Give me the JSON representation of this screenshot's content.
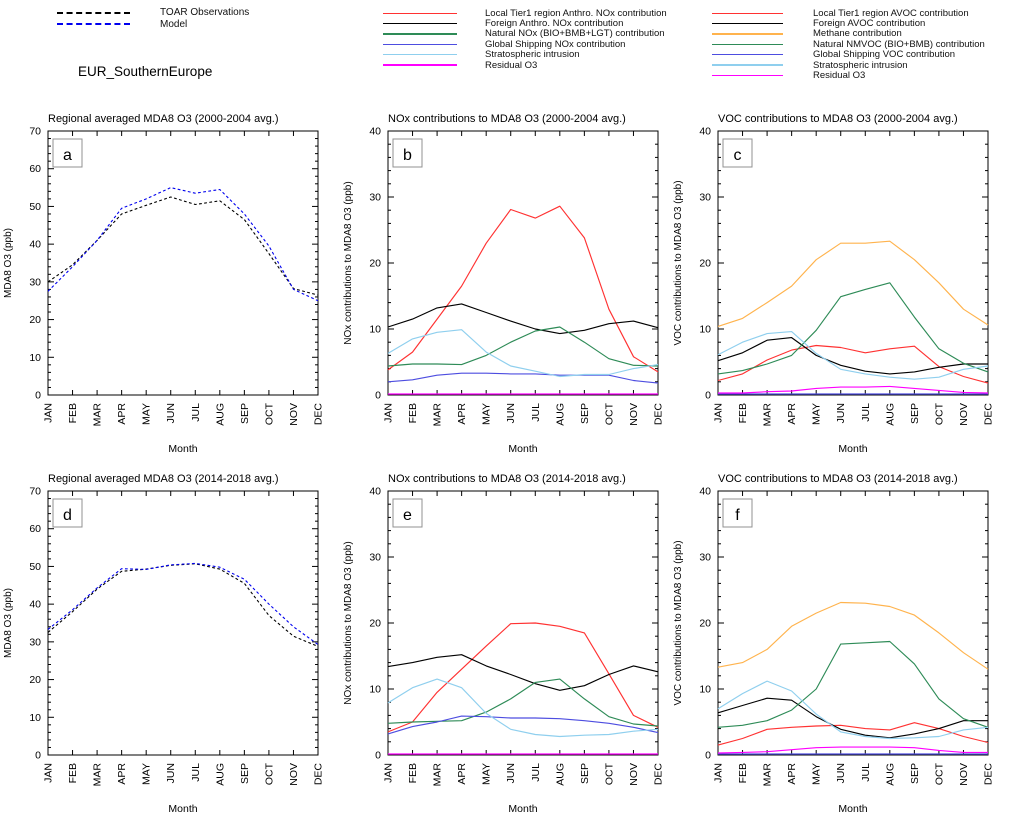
{
  "region_label": "EUR_SouthernEurope",
  "months": [
    "JAN",
    "FEB",
    "MAR",
    "APR",
    "MAY",
    "JUN",
    "JUL",
    "AUG",
    "SEP",
    "OCT",
    "NOV",
    "DEC"
  ],
  "xlabel": "Month",
  "colors": {
    "observations": "#000000",
    "model": "#0000ee",
    "local_anthro": "#ff3232",
    "foreign_anthro": "#000000",
    "natural": "#2e8b57",
    "shipping": "#4d4de0",
    "stratospheric": "#8fcfee",
    "residual": "#ff00ff",
    "methane": "#ffb34d"
  },
  "legends": [
    {
      "id": "obs-model",
      "entries": [
        {
          "label": "TOAR Observations",
          "color": "#000000",
          "dash": true
        },
        {
          "label": "Model",
          "color": "#0000ee",
          "dash": true
        }
      ]
    },
    {
      "id": "nox",
      "entries": [
        {
          "label": "Local Tier1 region Anthro. NOx contribution",
          "color": "#ff3232",
          "dash": false
        },
        {
          "label": "Foreign Anthro. NOx contribution",
          "color": "#000000",
          "dash": false
        },
        {
          "label": "Natural NOx (BIO+BMB+LGT) contribution",
          "color": "#2e8b57",
          "dash": false
        },
        {
          "label": "Global Shipping NOx contribution",
          "color": "#4d4de0",
          "dash": false
        },
        {
          "label": "Stratospheric intrusion",
          "color": "#8fcfee",
          "dash": false
        },
        {
          "label": "Residual O3",
          "color": "#ff00ff",
          "dash": false
        }
      ]
    },
    {
      "id": "voc",
      "entries": [
        {
          "label": "Local Tier1 region AVOC contribution",
          "color": "#ff3232",
          "dash": false
        },
        {
          "label": "Foreign AVOC contribution",
          "color": "#000000",
          "dash": false
        },
        {
          "label": "Methane contribution",
          "color": "#ffb34d",
          "dash": false
        },
        {
          "label": "Natural NMVOC (BIO+BMB) contribution",
          "color": "#2e8b57",
          "dash": false
        },
        {
          "label": "Global Shipping VOC contribution",
          "color": "#4d4de0",
          "dash": false
        },
        {
          "label": "Stratospheric intrusion",
          "color": "#8fcfee",
          "dash": false
        },
        {
          "label": "Residual O3",
          "color": "#ff00ff",
          "dash": false
        }
      ]
    }
  ],
  "chart_data": [
    {
      "type": "line",
      "letter": "a",
      "title": "Regional averaged MDA8 O3 (2000-2004 avg.)",
      "ylabel": "MDA8 O3 (ppb)",
      "xlabel": "Month",
      "ylim": [
        0,
        70
      ],
      "ytick_step": 10,
      "yminor_step": 2,
      "grid": false,
      "series": [
        {
          "name": "TOAR Observations",
          "color": "#000000",
          "dash": true,
          "values": [
            30,
            34.5,
            41,
            48,
            50.3,
            52.5,
            50.5,
            51.5,
            46.5,
            37.5,
            28.2,
            26.5
          ]
        },
        {
          "name": "Model",
          "color": "#0000ee",
          "dash": true,
          "values": [
            27.5,
            34,
            41,
            49.5,
            52,
            55,
            53.5,
            54.5,
            48,
            39.5,
            28,
            25
          ]
        }
      ]
    },
    {
      "type": "line",
      "letter": "b",
      "title": "NOx contributions to MDA8 O3 (2000-2004 avg.)",
      "ylabel": "NOx contributions to MDA8 O3 (ppb)",
      "xlabel": "Month",
      "ylim": [
        0,
        40
      ],
      "ytick_step": 10,
      "yminor_step": 2,
      "grid": false,
      "series": [
        {
          "name": "Local Tier1 region Anthro. NOx contribution",
          "color": "#ff3232",
          "dash": false,
          "values": [
            3.8,
            6.5,
            11.5,
            16.5,
            23,
            28.1,
            26.8,
            28.6,
            23.8,
            13,
            5.8,
            3.5
          ]
        },
        {
          "name": "Foreign Anthro. NOx contribution",
          "color": "#000000",
          "dash": false,
          "values": [
            10.3,
            11.5,
            13.2,
            13.8,
            12.5,
            11.2,
            10,
            9.3,
            9.8,
            10.8,
            11.2,
            10.2
          ]
        },
        {
          "name": "Natural NOx (BIO+BMB+LGT) contribution",
          "color": "#2e8b57",
          "dash": false,
          "values": [
            4.4,
            4.7,
            4.7,
            4.6,
            6,
            8,
            9.7,
            10.3,
            8,
            5.5,
            4.5,
            4.4
          ]
        },
        {
          "name": "Global Shipping NOx contribution",
          "color": "#4d4de0",
          "dash": false,
          "values": [
            2,
            2.3,
            3,
            3.3,
            3.3,
            3.2,
            3.2,
            3,
            3,
            3,
            2.2,
            1.8
          ]
        },
        {
          "name": "Stratospheric intrusion",
          "color": "#8fcfee",
          "dash": false,
          "values": [
            6.3,
            8.5,
            9.5,
            9.9,
            6.5,
            4.4,
            3.6,
            2.8,
            3.1,
            3.1,
            4,
            4.6
          ]
        },
        {
          "name": "Residual O3",
          "color": "#ff00ff",
          "dash": false,
          "values": [
            0.15,
            0.15,
            0.15,
            0.15,
            0.15,
            0.15,
            0.15,
            0.15,
            0.15,
            0.15,
            0.15,
            0.15
          ]
        }
      ]
    },
    {
      "type": "line",
      "letter": "c",
      "title": "VOC contributions to MDA8 O3 (2000-2004 avg.)",
      "ylabel": "VOC contributions to MDA8 O3 (ppb)",
      "xlabel": "Month",
      "ylim": [
        0,
        40
      ],
      "ytick_step": 10,
      "yminor_step": 2,
      "grid": false,
      "series": [
        {
          "name": "Local Tier1 region AVOC contribution",
          "color": "#ff3232",
          "dash": false,
          "values": [
            2.2,
            3.2,
            5.3,
            6.8,
            7.5,
            7.2,
            6.4,
            7,
            7.4,
            4.3,
            2.8,
            1.8
          ]
        },
        {
          "name": "Foreign AVOC contribution",
          "color": "#000000",
          "dash": false,
          "values": [
            5.2,
            6.4,
            8.3,
            8.7,
            6,
            4.5,
            3.6,
            3.2,
            3.5,
            4.2,
            4.7,
            4.7
          ]
        },
        {
          "name": "Methane contribution",
          "color": "#ffb34d",
          "dash": false,
          "values": [
            10.4,
            11.6,
            14,
            16.5,
            20.5,
            23,
            23,
            23.3,
            20.5,
            17,
            13,
            10.6
          ]
        },
        {
          "name": "Natural NMVOC (BIO+BMB) contribution",
          "color": "#2e8b57",
          "dash": false,
          "values": [
            3.2,
            3.7,
            4.7,
            6,
            9.8,
            14.9,
            16,
            17,
            11.8,
            7,
            4.8,
            3.5
          ]
        },
        {
          "name": "Global Shipping VOC contribution",
          "color": "#4d4de0",
          "dash": false,
          "values": [
            0.15,
            0.15,
            0.15,
            0.15,
            0.15,
            0.15,
            0.15,
            0.15,
            0.15,
            0.15,
            0.15,
            0.15
          ]
        },
        {
          "name": "Stratospheric intrusion",
          "color": "#8fcfee",
          "dash": false,
          "values": [
            6.1,
            8,
            9.3,
            9.6,
            6.3,
            3.9,
            3.2,
            2.7,
            2.4,
            2.7,
            3.9,
            4.4
          ]
        },
        {
          "name": "Residual O3",
          "color": "#ff00ff",
          "dash": false,
          "values": [
            0.3,
            0.3,
            0.5,
            0.6,
            1,
            1.2,
            1.2,
            1.3,
            1,
            0.7,
            0.4,
            0.3
          ]
        }
      ]
    },
    {
      "type": "line",
      "letter": "d",
      "title": "Regional averaged MDA8 O3 (2014-2018 avg.)",
      "ylabel": "MDA8 O3 (ppb)",
      "xlabel": "Month",
      "ylim": [
        0,
        70
      ],
      "ytick_step": 10,
      "yminor_step": 2,
      "grid": false,
      "series": [
        {
          "name": "TOAR Observations",
          "color": "#000000",
          "dash": true,
          "values": [
            32.5,
            38,
            44,
            48.7,
            49.3,
            50.3,
            50.7,
            49.3,
            45.5,
            37,
            31.5,
            28.8
          ]
        },
        {
          "name": "Model",
          "color": "#0000ee",
          "dash": true,
          "values": [
            33.3,
            38.5,
            44.3,
            49.4,
            49.2,
            50.4,
            50.8,
            49.8,
            46.6,
            40,
            34,
            29.3
          ]
        }
      ]
    },
    {
      "type": "line",
      "letter": "e",
      "title": "NOx contributions to MDA8 O3 (2014-2018 avg.)",
      "ylabel": "NOx contributions to MDA8 O3 (ppb)",
      "xlabel": "Month",
      "ylim": [
        0,
        40
      ],
      "ytick_step": 10,
      "yminor_step": 2,
      "grid": false,
      "series": [
        {
          "name": "Local Tier1 region Anthro. NOx contribution",
          "color": "#ff3232",
          "dash": false,
          "values": [
            3.5,
            5,
            9.5,
            13,
            16.5,
            19.9,
            20,
            19.5,
            18.5,
            12.3,
            6,
            4.2
          ]
        },
        {
          "name": "Foreign Anthro. NOx contribution",
          "color": "#000000",
          "dash": false,
          "values": [
            13.4,
            14,
            14.8,
            15.2,
            13.5,
            12.2,
            10.8,
            9.8,
            10.5,
            12.2,
            13.5,
            12.6
          ]
        },
        {
          "name": "Natural NOx (BIO+BMB+LGT) contribution",
          "color": "#2e8b57",
          "dash": false,
          "values": [
            4.8,
            5,
            5.1,
            5.2,
            6.5,
            8.5,
            11,
            11.5,
            8.5,
            5.8,
            4.7,
            4.4
          ]
        },
        {
          "name": "Global Shipping NOx contribution",
          "color": "#4d4de0",
          "dash": false,
          "values": [
            3.2,
            4.3,
            5,
            5.9,
            5.8,
            5.6,
            5.6,
            5.5,
            5.2,
            4.8,
            4.2,
            3.4
          ]
        },
        {
          "name": "Stratospheric intrusion",
          "color": "#8fcfee",
          "dash": false,
          "values": [
            7.9,
            10.2,
            11.5,
            10.2,
            6.3,
            3.9,
            3.1,
            2.8,
            3,
            3.1,
            3.6,
            3.9
          ]
        },
        {
          "name": "Residual O3",
          "color": "#ff00ff",
          "dash": false,
          "values": [
            0.15,
            0.15,
            0.15,
            0.15,
            0.15,
            0.15,
            0.15,
            0.15,
            0.15,
            0.15,
            0.15,
            0.15
          ]
        }
      ]
    },
    {
      "type": "line",
      "letter": "f",
      "title": "VOC contributions to MDA8 O3 (2014-2018 avg.)",
      "ylabel": "VOC contributions to MDA8 O3 (ppb)",
      "xlabel": "Month",
      "ylim": [
        0,
        40
      ],
      "ytick_step": 10,
      "yminor_step": 2,
      "grid": false,
      "series": [
        {
          "name": "Local Tier1 region AVOC contribution",
          "color": "#ff3232",
          "dash": false,
          "values": [
            1.5,
            2.5,
            3.9,
            4.2,
            4.4,
            4.5,
            4,
            3.8,
            4.9,
            4,
            2.8,
            1.9
          ]
        },
        {
          "name": "Foreign AVOC contribution",
          "color": "#000000",
          "dash": false,
          "values": [
            6.4,
            7.5,
            8.6,
            8.3,
            5.8,
            3.9,
            3,
            2.6,
            3.2,
            4,
            5.2,
            5.2
          ]
        },
        {
          "name": "Methane contribution",
          "color": "#ffb34d",
          "dash": false,
          "values": [
            13.3,
            14,
            16,
            19.5,
            21.5,
            23.1,
            23,
            22.5,
            21.2,
            18.5,
            15.5,
            13
          ]
        },
        {
          "name": "Natural NMVOC (BIO+BMB) contribution",
          "color": "#2e8b57",
          "dash": false,
          "values": [
            4.2,
            4.5,
            5.2,
            6.8,
            10,
            16.8,
            17,
            17.2,
            13.8,
            8.5,
            5.5,
            4.2
          ]
        },
        {
          "name": "Global Shipping VOC contribution",
          "color": "#4d4de0",
          "dash": false,
          "values": [
            0.15,
            0.15,
            0.15,
            0.15,
            0.15,
            0.15,
            0.15,
            0.15,
            0.15,
            0.15,
            0.15,
            0.15
          ]
        },
        {
          "name": "Stratospheric intrusion",
          "color": "#8fcfee",
          "dash": false,
          "values": [
            7,
            9.3,
            11.2,
            9.7,
            6.2,
            3.5,
            2.8,
            2.5,
            2.6,
            2.8,
            3.8,
            4.2
          ]
        },
        {
          "name": "Residual O3",
          "color": "#ff00ff",
          "dash": false,
          "values": [
            0.3,
            0.4,
            0.5,
            0.8,
            1.1,
            1.2,
            1.2,
            1.2,
            1.1,
            0.7,
            0.4,
            0.4
          ]
        }
      ]
    }
  ]
}
